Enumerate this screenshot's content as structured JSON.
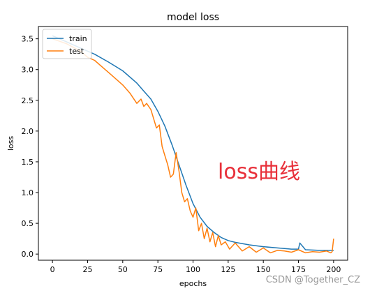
{
  "chart_data": {
    "type": "line",
    "title": "model loss",
    "xlabel": "epochs",
    "ylabel": "loss",
    "xlim": [
      -10,
      210
    ],
    "ylim": [
      -0.1,
      3.7
    ],
    "xticks": [
      0,
      25,
      50,
      75,
      100,
      125,
      150,
      175,
      200
    ],
    "yticks": [
      0.0,
      0.5,
      1.0,
      1.5,
      2.0,
      2.5,
      3.0,
      3.5
    ],
    "grid": false,
    "legend_position": "top-left",
    "annotation": "loss曲线",
    "series": [
      {
        "name": "train",
        "color": "#1f77b4",
        "x": [
          0,
          10,
          20,
          30,
          40,
          50,
          60,
          65,
          70,
          75,
          80,
          85,
          90,
          95,
          100,
          105,
          110,
          115,
          120,
          125,
          130,
          140,
          150,
          160,
          170,
          175,
          176,
          180,
          190,
          200
        ],
        "y": [
          3.55,
          3.45,
          3.35,
          3.25,
          3.12,
          2.98,
          2.78,
          2.65,
          2.52,
          2.32,
          2.08,
          1.78,
          1.45,
          1.12,
          0.82,
          0.6,
          0.45,
          0.35,
          0.27,
          0.22,
          0.19,
          0.15,
          0.12,
          0.1,
          0.08,
          0.08,
          0.18,
          0.07,
          0.06,
          0.06
        ]
      },
      {
        "name": "test",
        "color": "#ff7f0e",
        "x": [
          0,
          10,
          20,
          25,
          30,
          35,
          40,
          45,
          50,
          55,
          60,
          63,
          65,
          67,
          70,
          72,
          74,
          76,
          78,
          80,
          82,
          84,
          86,
          88,
          90,
          92,
          94,
          96,
          98,
          100,
          102,
          104,
          106,
          108,
          110,
          112,
          114,
          116,
          118,
          120,
          123,
          126,
          130,
          135,
          140,
          145,
          150,
          155,
          160,
          165,
          170,
          175,
          180,
          185,
          190,
          195,
          198,
          199,
          200
        ],
        "y": [
          3.5,
          3.42,
          3.3,
          3.2,
          3.15,
          3.05,
          2.95,
          2.85,
          2.75,
          2.62,
          2.45,
          2.52,
          2.4,
          2.45,
          2.35,
          2.2,
          2.05,
          2.1,
          1.75,
          1.6,
          1.45,
          1.25,
          1.3,
          1.65,
          1.35,
          1.0,
          0.85,
          0.9,
          0.7,
          0.6,
          0.75,
          0.38,
          0.5,
          0.25,
          0.42,
          0.2,
          0.35,
          0.12,
          0.3,
          0.15,
          0.2,
          0.08,
          0.18,
          0.05,
          0.12,
          0.03,
          0.1,
          0.02,
          0.06,
          0.05,
          0.03,
          0.07,
          0.02,
          0.04,
          0.03,
          0.05,
          0.02,
          0.04,
          0.25
        ]
      }
    ]
  },
  "watermark": "CSDN @Together_CZ"
}
